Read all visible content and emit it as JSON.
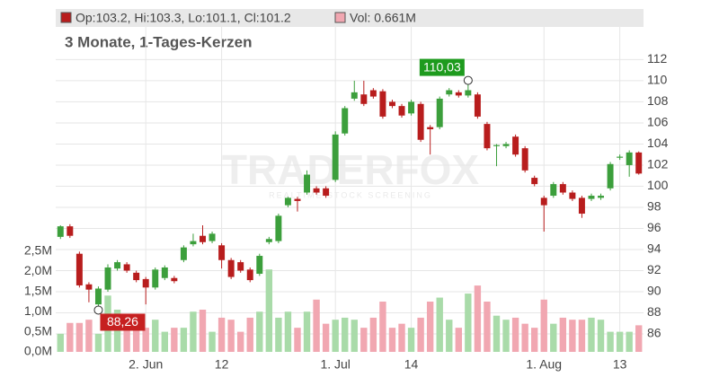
{
  "chart_data": {
    "type": "candlestick",
    "title": "3 Monate, 1-Tages-Kerzen",
    "info": "Op:103.2, Hi:103.3, Lo:101.1, Cl:101.2",
    "volume_info": "Vol: 0.661M",
    "watermark": "TRADERFOX",
    "watermark_subtitle": "REALTIME STOCK SCREENING",
    "categories": [
      null,
      null,
      null,
      null,
      null,
      null,
      null,
      null,
      null,
      "2. Jun",
      null,
      null,
      null,
      null,
      null,
      null,
      null,
      "12",
      null,
      null,
      null,
      null,
      null,
      null,
      null,
      null,
      null,
      null,
      null,
      "1. Jul",
      null,
      null,
      null,
      null,
      null,
      null,
      null,
      "14",
      null,
      null,
      null,
      null,
      null,
      null,
      null,
      null,
      null,
      null,
      null,
      null,
      null,
      "1. Aug",
      null,
      null,
      null,
      null,
      null,
      null,
      null,
      "13",
      null,
      null
    ],
    "open": [
      95.2,
      96.2,
      93.6,
      90.7,
      88.8,
      90.2,
      92.2,
      92.6,
      91.8,
      91.2,
      90.4,
      91.3,
      91.3,
      93.0,
      94.5,
      95.3,
      94.8,
      94.4,
      93.0,
      92.8,
      92.1,
      91.7,
      94.7,
      94.8,
      98.2,
      98.8,
      99.4,
      99.8,
      99.8,
      100.6,
      105.0,
      108.3,
      108.7,
      109.1,
      109.0,
      108.0,
      107.6,
      106.9,
      107.8,
      105.6,
      105.6,
      108.7,
      108.9,
      108.6,
      108.7,
      105.9,
      103.8,
      103.8,
      104.7,
      103.6,
      100.8,
      98.9,
      99.1,
      100.2,
      99.4,
      98.9,
      98.8,
      98.9,
      99.8,
      102.7,
      102.0,
      103.2
    ],
    "high": [
      96.3,
      96.4,
      93.8,
      90.9,
      90.5,
      92.6,
      93.0,
      92.8,
      92.0,
      91.4,
      92.3,
      92.5,
      91.5,
      94.4,
      95.5,
      96.3,
      95.7,
      94.6,
      93.2,
      93.0,
      92.3,
      93.6,
      95.2,
      97.4,
      99.0,
      99.0,
      101.5,
      100.0,
      100.0,
      105.2,
      107.6,
      110.0,
      110.0,
      109.3,
      109.2,
      108.2,
      107.8,
      108.2,
      108.0,
      105.8,
      108.5,
      109.3,
      109.1,
      110.03,
      108.9,
      106.1,
      104.0,
      104.2,
      104.9,
      103.8,
      101.0,
      99.1,
      100.4,
      100.4,
      99.6,
      99.1,
      99.3,
      99.3,
      102.3,
      103.0,
      103.4,
      103.3
    ],
    "low": [
      95.0,
      95.1,
      90.4,
      89.0,
      88.26,
      90.0,
      92.0,
      91.8,
      90.9,
      88.8,
      90.2,
      91.1,
      90.8,
      92.8,
      94.3,
      94.5,
      94.6,
      92.2,
      91.2,
      91.8,
      90.9,
      91.5,
      94.5,
      94.6,
      98.0,
      97.6,
      99.2,
      99.2,
      98.9,
      100.4,
      104.8,
      108.1,
      107.6,
      108.3,
      106.4,
      107.4,
      106.5,
      106.7,
      104.2,
      103.0,
      105.4,
      108.5,
      108.4,
      108.4,
      106.4,
      103.4,
      101.9,
      103.6,
      102.8,
      101.3,
      100.0,
      95.7,
      98.9,
      99.2,
      98.6,
      97.0,
      98.6,
      98.7,
      99.6,
      102.5,
      100.9,
      101.1
    ],
    "close": [
      96.2,
      95.3,
      90.6,
      90.2,
      90.3,
      92.3,
      92.8,
      92.0,
      91.1,
      90.4,
      92.1,
      92.3,
      91.0,
      94.2,
      94.8,
      94.7,
      95.5,
      93.0,
      91.4,
      92.0,
      91.1,
      93.4,
      95.0,
      97.2,
      98.9,
      98.6,
      101.1,
      99.4,
      99.1,
      104.9,
      107.4,
      108.9,
      107.8,
      108.5,
      106.6,
      107.6,
      106.7,
      108.0,
      104.4,
      105.4,
      108.3,
      109.1,
      108.6,
      109.1,
      106.6,
      103.6,
      103.9,
      104.0,
      103.0,
      101.5,
      100.2,
      98.2,
      100.2,
      99.4,
      98.8,
      97.4,
      99.1,
      99.1,
      102.1,
      102.8,
      103.2,
      101.2
    ],
    "volume": [
      0.45,
      0.72,
      0.72,
      0.8,
      0.45,
      1.4,
      1.05,
      0.6,
      0.8,
      0.6,
      0.8,
      0.5,
      0.6,
      0.6,
      1.0,
      1.05,
      0.5,
      0.85,
      0.8,
      0.5,
      0.85,
      1.0,
      2.05,
      0.85,
      1.0,
      0.6,
      1.0,
      1.3,
      0.7,
      0.8,
      0.85,
      0.8,
      0.6,
      0.85,
      1.25,
      0.6,
      0.7,
      0.6,
      0.85,
      1.25,
      1.35,
      0.8,
      0.6,
      1.45,
      1.65,
      1.25,
      0.9,
      0.8,
      0.85,
      0.7,
      0.6,
      1.3,
      0.7,
      0.85,
      0.8,
      0.8,
      0.85,
      0.8,
      0.5,
      0.5,
      0.5,
      0.661
    ],
    "ylim": [
      84.3,
      116.8
    ],
    "yticks": [
      86,
      88,
      90,
      92,
      94,
      96,
      98,
      100,
      102,
      104,
      106,
      108,
      110,
      112
    ],
    "volume_ylim": [
      0,
      8.53
    ],
    "volume_ticks": [
      {
        "value": 0,
        "label": "0,0M"
      },
      {
        "value": 0.5,
        "label": "0,5M"
      },
      {
        "value": 1,
        "label": "1,0M"
      },
      {
        "value": 1.5,
        "label": "1,5M"
      },
      {
        "value": 2,
        "label": "2,0M"
      },
      {
        "value": 2.5,
        "label": "2,5M"
      }
    ],
    "annotations": [
      {
        "value": 110.03,
        "label": "110,03"
      },
      {
        "value": 88.26,
        "label": "88,26"
      }
    ],
    "up_color": "#3c9f3c",
    "down_color": "#b81d1d",
    "volume_up_color": "#a9dba9",
    "volume_down_color": "#f1a7b1",
    "grid": true
  }
}
